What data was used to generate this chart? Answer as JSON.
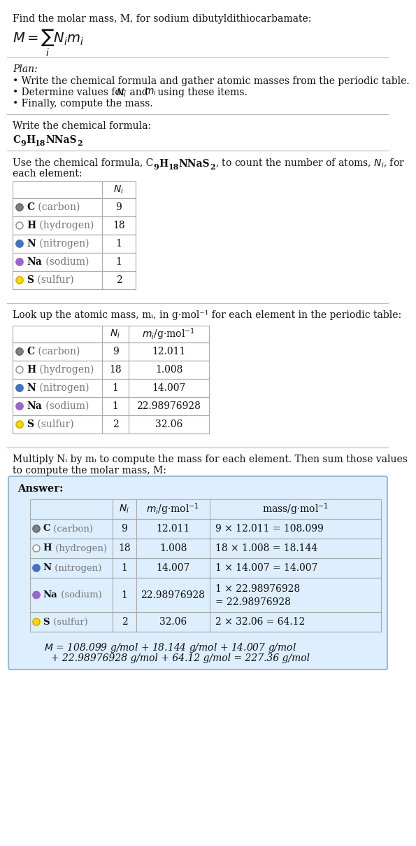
{
  "title_text": "Find the molar mass, M, for sodium dibutyldithiocarbamate:",
  "bg_color": "#ffffff",
  "plan_label": "Plan:",
  "plan_bullets": [
    "Write the chemical formula and gather atomic masses from the periodic table.",
    "Determine values for Nᵢ and mᵢ using these items.",
    "Finally, compute the mass."
  ],
  "formula_label": "Write the chemical formula:",
  "table1_intro_parts": [
    "Use the chemical formula, C",
    "9",
    "H",
    "18",
    "NNaS",
    "2",
    ", to count the number of atoms, Nᵢ, for each element:"
  ],
  "table2_intro": "Look up the atomic mass, mᵢ, in g·mol⁻¹ for each element in the periodic table:",
  "table3_intro": "Multiply Nᵢ by mᵢ to compute the mass for each element. Then sum those values\nto compute the molar mass, M:",
  "elements": [
    "C (carbon)",
    "H (hydrogen)",
    "N (nitrogen)",
    "Na (sodium)",
    "S (sulfur)"
  ],
  "element_colors": [
    "#808080",
    "#ffffff",
    "#4472c4",
    "#9966cc",
    "#ffd700"
  ],
  "element_border_colors": [
    "#666666",
    "#888888",
    "#4472c4",
    "#9966cc",
    "#ccaa00"
  ],
  "Ni": [
    9,
    18,
    1,
    1,
    2
  ],
  "mi": [
    "12.011",
    "1.008",
    "14.007",
    "22.98976928",
    "32.06"
  ],
  "mass_calc_line1": [
    "9 × 12.011 = 108.099",
    "18 × 1.008 = 18.144",
    "1 × 14.007 = 14.007",
    "1 × 22.98976928",
    "2 × 32.06 = 64.12"
  ],
  "mass_calc_line2": [
    "",
    "",
    "",
    "= 22.98976928",
    ""
  ],
  "answer_box_color": "#ddeeff",
  "answer_box_border": "#99bbdd",
  "final_eq_line1": "M = 108.099 g/mol + 18.144 g/mol + 14.007 g/mol",
  "final_eq_line2": "   + 22.98976928 g/mol + 64.12 g/mol = 227.36 g/mol",
  "table_border_color": "#aaaaaa"
}
